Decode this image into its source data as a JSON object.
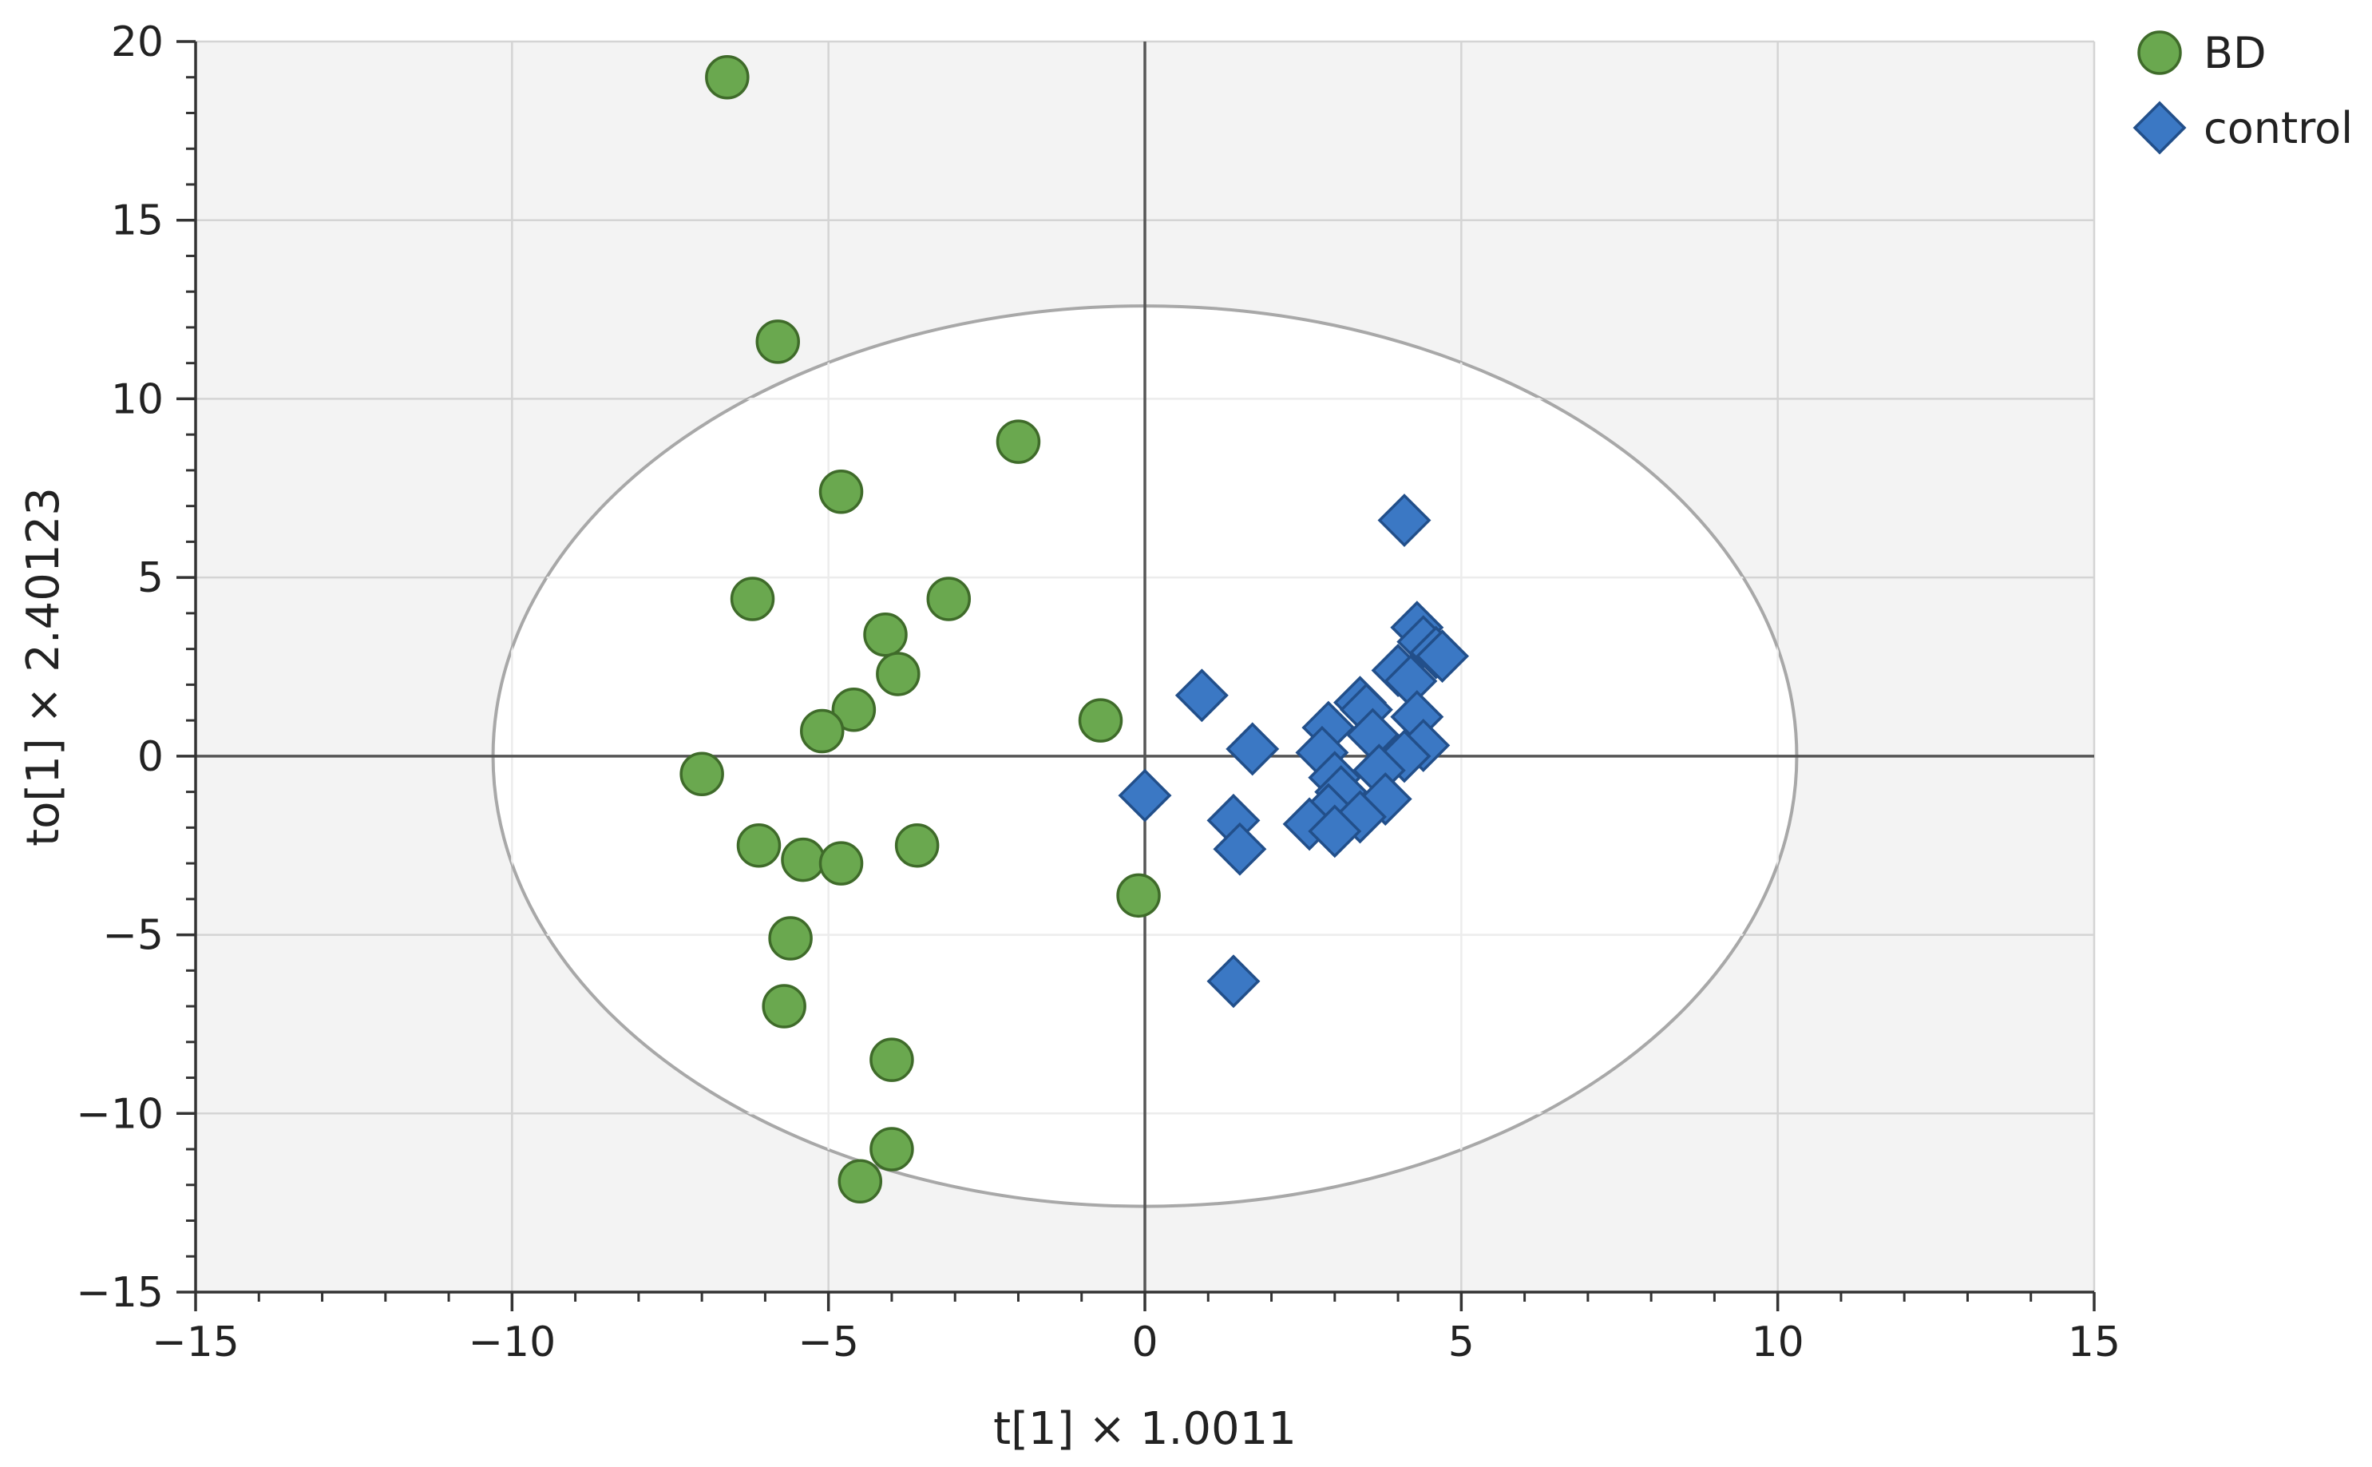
{
  "chart_data": {
    "type": "scatter",
    "title": "",
    "xlabel": "t[1] × 1.0011",
    "ylabel": "to[1] × 2.40123",
    "xlim": [
      -15,
      15
    ],
    "ylim": [
      -15,
      20
    ],
    "x_ticks": [
      -15,
      -10,
      -5,
      0,
      5,
      10,
      15
    ],
    "y_ticks": [
      -15,
      -10,
      -5,
      0,
      5,
      10,
      15,
      20
    ],
    "x_tick_labels": [
      "−15",
      "−10",
      "−5",
      "0",
      "5",
      "10",
      "15"
    ],
    "y_tick_labels": [
      "−15",
      "−10",
      "−5",
      "0",
      "5",
      "10",
      "15",
      "20"
    ],
    "grid": true,
    "legend": "top-right",
    "confidence_ellipse": {
      "center": [
        0,
        0
      ],
      "x_semi_axis": 10.3,
      "y_semi_axis": 12.6
    },
    "series": [
      {
        "name": "BD",
        "marker": "circle",
        "color": "#6aa84f",
        "edge_color": "#3f6b2a",
        "points": [
          [
            -6.6,
            19.0
          ],
          [
            -5.8,
            11.6
          ],
          [
            -2.0,
            8.8
          ],
          [
            -4.8,
            7.4
          ],
          [
            -6.2,
            4.4
          ],
          [
            -3.1,
            4.4
          ],
          [
            -4.1,
            3.4
          ],
          [
            -3.9,
            2.3
          ],
          [
            -4.6,
            1.3
          ],
          [
            -5.1,
            0.7
          ],
          [
            -0.7,
            1.0
          ],
          [
            -7.0,
            -0.5
          ],
          [
            -6.1,
            -2.5
          ],
          [
            -5.4,
            -2.9
          ],
          [
            -4.8,
            -3.0
          ],
          [
            -3.6,
            -2.5
          ],
          [
            -0.1,
            -3.9
          ],
          [
            -5.6,
            -5.1
          ],
          [
            -5.7,
            -7.0
          ],
          [
            -4.0,
            -8.5
          ],
          [
            -4.0,
            -11.0
          ],
          [
            -4.5,
            -11.9
          ]
        ]
      },
      {
        "name": "control",
        "marker": "diamond",
        "color": "#3b78c4",
        "edge_color": "#224f8a",
        "points": [
          [
            4.1,
            6.6
          ],
          [
            4.3,
            3.6
          ],
          [
            4.4,
            3.2
          ],
          [
            4.6,
            2.9
          ],
          [
            4.7,
            2.8
          ],
          [
            4.0,
            2.4
          ],
          [
            4.2,
            2.1
          ],
          [
            0.9,
            1.7
          ],
          [
            3.4,
            1.5
          ],
          [
            3.5,
            1.3
          ],
          [
            4.3,
            1.1
          ],
          [
            2.9,
            0.8
          ],
          [
            3.6,
            0.6
          ],
          [
            1.7,
            0.2
          ],
          [
            2.8,
            0.1
          ],
          [
            4.4,
            0.3
          ],
          [
            4.1,
            0.0
          ],
          [
            3.7,
            -0.4
          ],
          [
            3.0,
            -0.6
          ],
          [
            0.0,
            -1.1
          ],
          [
            3.1,
            -1.0
          ],
          [
            2.9,
            -1.5
          ],
          [
            3.8,
            -1.2
          ],
          [
            1.4,
            -1.8
          ],
          [
            3.4,
            -1.7
          ],
          [
            2.6,
            -1.9
          ],
          [
            3.0,
            -2.1
          ],
          [
            1.5,
            -2.6
          ],
          [
            1.4,
            -6.3
          ]
        ]
      }
    ]
  }
}
